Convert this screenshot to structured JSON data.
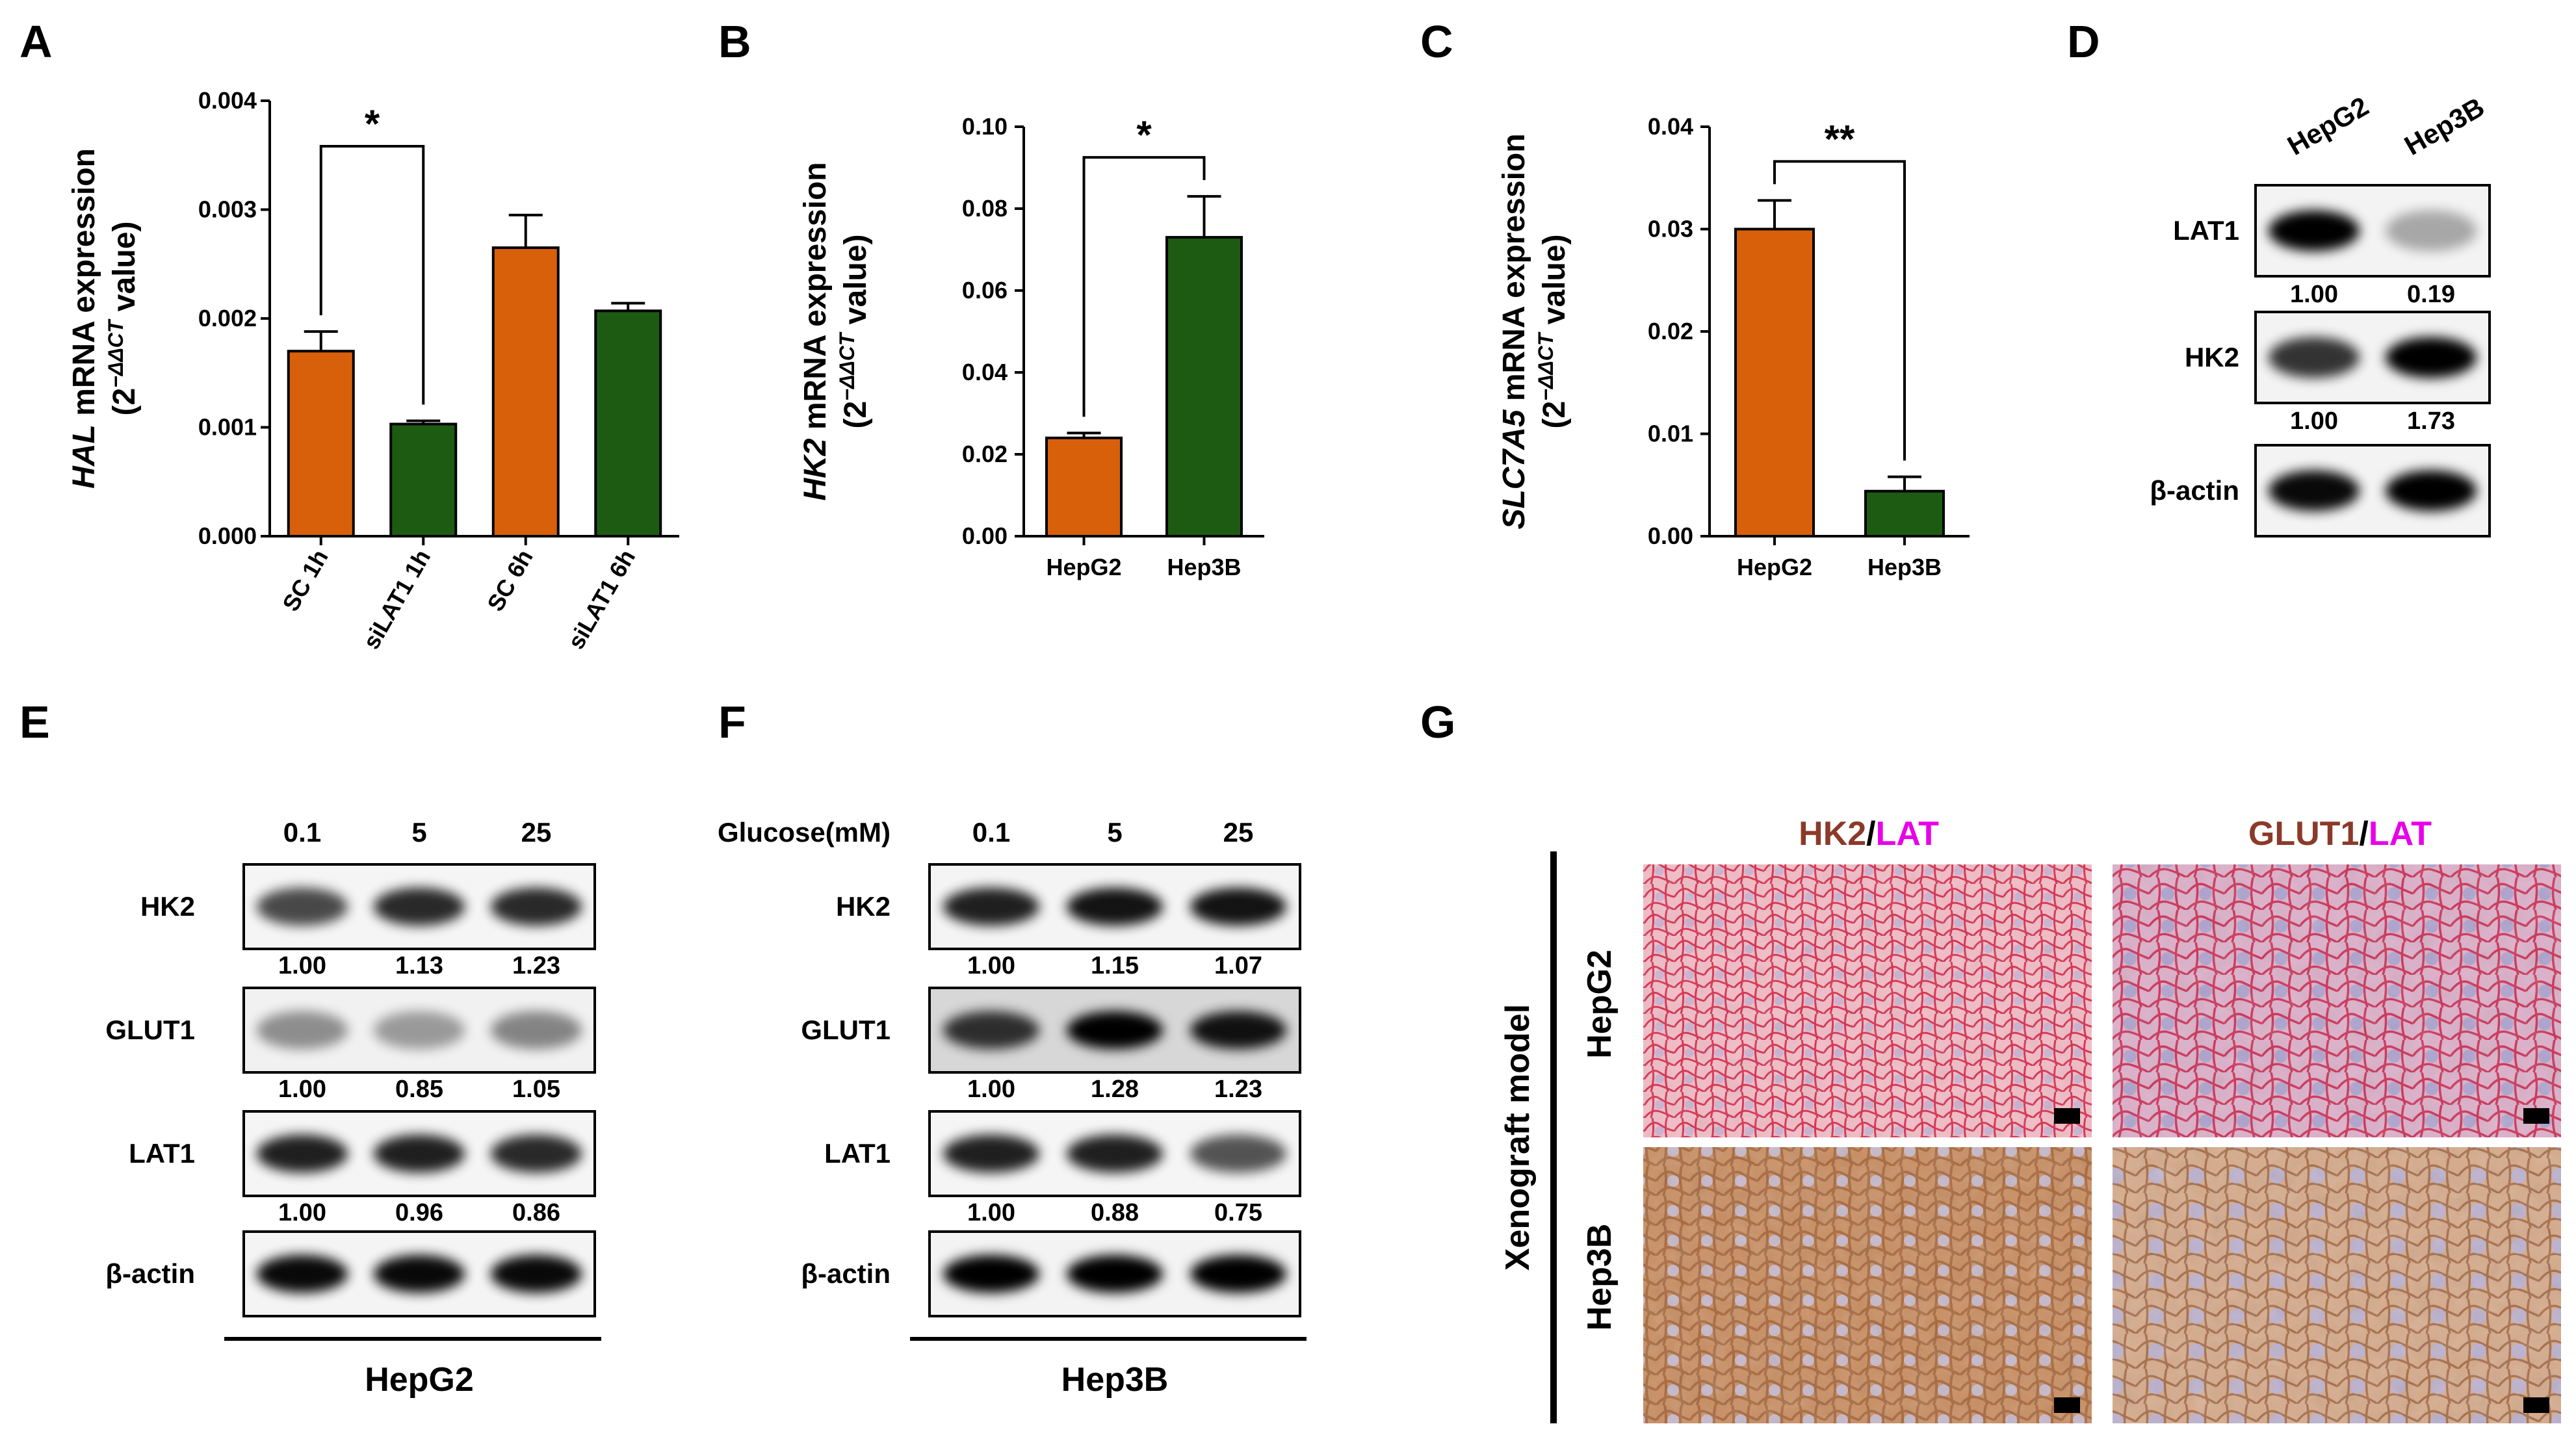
{
  "colors": {
    "orange": "#d9600b",
    "green": "#1d5b12",
    "magenta": "#e800e8",
    "brown": "#8b3a2a",
    "black": "#000000"
  },
  "panels": {
    "A": "A",
    "B": "B",
    "C": "C",
    "D": "D",
    "E": "E",
    "F": "F",
    "G": "G"
  },
  "chart_data": [
    {
      "panel": "A",
      "type": "bar",
      "categories": [
        "SC 1h",
        "siLAT1 1h",
        "SC 6h",
        "siLAT1 6h"
      ],
      "values": [
        0.0017,
        0.00103,
        0.00265,
        0.00207
      ],
      "errors": [
        0.00018,
        3e-05,
        0.0003,
        7e-05
      ],
      "bar_colors": [
        "orange",
        "green",
        "orange",
        "green"
      ],
      "yticks": [
        "0.000",
        "0.001",
        "0.002",
        "0.003",
        "0.004"
      ],
      "ylim": [
        0,
        0.004
      ],
      "ylabel_gene": "HAL",
      "ylabel_text": " mRNA expression",
      "ylabel_line2": "(2",
      "ylabel_sup": "−ΔΔCT",
      "ylabel_end": " value)",
      "significance": [
        {
          "from": 0,
          "to": 1,
          "label": "*"
        }
      ]
    },
    {
      "panel": "B",
      "type": "bar",
      "categories": [
        "HepG2",
        "Hep3B"
      ],
      "values": [
        0.024,
        0.073
      ],
      "errors": [
        0.0012,
        0.01
      ],
      "bar_colors": [
        "orange",
        "green"
      ],
      "yticks": [
        "0.00",
        "0.02",
        "0.04",
        "0.06",
        "0.08",
        "0.10"
      ],
      "ylim": [
        0,
        0.1
      ],
      "ylabel_gene": "HK2",
      "ylabel_text": " mRNA expression",
      "ylabel_line2": "(2",
      "ylabel_sup": "−ΔΔCT",
      "ylabel_end": " value)",
      "significance": [
        {
          "from": 0,
          "to": 1,
          "label": "*"
        }
      ]
    },
    {
      "panel": "C",
      "type": "bar",
      "categories": [
        "HepG2",
        "Hep3B"
      ],
      "values": [
        0.03,
        0.0044
      ],
      "errors": [
        0.0028,
        0.0014
      ],
      "bar_colors": [
        "orange",
        "green"
      ],
      "yticks": [
        "0.00",
        "0.01",
        "0.02",
        "0.03",
        "0.04"
      ],
      "ylim": [
        0,
        0.04
      ],
      "ylabel_gene": "SLC7A5",
      "ylabel_text": " mRNA expression",
      "ylabel_line2": "(2",
      "ylabel_sup": "−ΔΔCT",
      "ylabel_end": " value)",
      "significance": [
        {
          "from": 0,
          "to": 1,
          "label": "**"
        }
      ]
    }
  ],
  "blots": {
    "D": {
      "columns": [
        "HepG2",
        "Hep3B"
      ],
      "rows": [
        {
          "label": "LAT1",
          "intensity": [
            1.0,
            0.19
          ],
          "values": [
            "1.00",
            "0.19"
          ]
        },
        {
          "label": "HK2",
          "intensity": [
            0.75,
            1.0
          ],
          "values": [
            "1.00",
            "1.73"
          ]
        },
        {
          "label": "β-actin",
          "intensity": [
            0.95,
            1.0
          ],
          "values": []
        }
      ]
    },
    "E": {
      "columns": [
        "0.1",
        "5",
        "25"
      ],
      "cell_line": "HepG2",
      "rows": [
        {
          "label": "HK2",
          "intensity": [
            0.65,
            0.8,
            0.8
          ],
          "values": [
            "1.00",
            "1.13",
            "1.23"
          ]
        },
        {
          "label": "GLUT1",
          "intensity": [
            0.3,
            0.25,
            0.35
          ],
          "values": [
            "1.00",
            "0.85",
            "1.05"
          ]
        },
        {
          "label": "LAT1",
          "intensity": [
            0.85,
            0.85,
            0.8
          ],
          "values": [
            "1.00",
            "0.96",
            "0.86"
          ]
        },
        {
          "label": "β-actin",
          "intensity": [
            0.95,
            0.95,
            0.95
          ],
          "values": []
        }
      ]
    },
    "F": {
      "header_label": "Glucose(mM)",
      "columns": [
        "0.1",
        "5",
        "25"
      ],
      "cell_line": "Hep3B",
      "rows": [
        {
          "label": "HK2",
          "intensity": [
            0.85,
            0.9,
            0.9
          ],
          "values": [
            "1.00",
            "1.15",
            "1.07"
          ]
        },
        {
          "label": "GLUT1",
          "intensity": [
            0.75,
            1.0,
            0.9
          ],
          "values": [
            "1.00",
            "1.28",
            "1.23"
          ]
        },
        {
          "label": "LAT1",
          "intensity": [
            0.85,
            0.85,
            0.6
          ],
          "values": [
            "1.00",
            "0.88",
            "0.75"
          ]
        },
        {
          "label": "β-actin",
          "intensity": [
            1.0,
            1.0,
            1.0
          ],
          "values": []
        }
      ]
    }
  },
  "panel_g": {
    "model_label": "Xenograft model",
    "row_labels": [
      "HepG2",
      "Hep3B"
    ],
    "col1": {
      "marker1": "HK2",
      "sep": "/",
      "marker2": "LAT"
    },
    "col2": {
      "marker1": "GLUT1",
      "sep": "/",
      "marker2": "LAT"
    }
  }
}
